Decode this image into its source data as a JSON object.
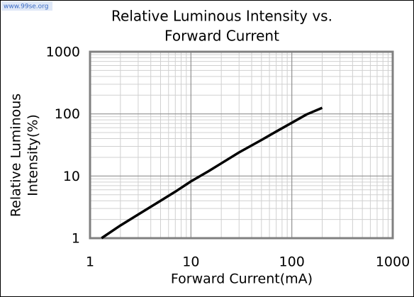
{
  "watermark": "www.99se.org",
  "chart_data": {
    "type": "line",
    "title": [
      "Relative Luminous Intensity vs.",
      "Forward Current"
    ],
    "x_label": "Forward Current(mA)",
    "y_label": [
      "Relative Luminous",
      "Intensity(%)"
    ],
    "x": [
      1.3,
      2,
      3,
      5,
      7,
      10,
      15,
      20,
      30,
      50,
      70,
      100,
      140,
      200
    ],
    "series": [
      {
        "color": "#000000",
        "values": [
          1,
          1.6,
          2.4,
          4,
          5.6,
          8.2,
          12,
          16,
          24,
          38,
          52,
          72,
          98,
          125
        ]
      }
    ],
    "xlim": [
      1,
      1000
    ],
    "ylim": [
      1,
      1000
    ],
    "xticks": [
      1,
      10,
      100,
      1000
    ],
    "yticks": [
      1,
      10,
      100,
      1000
    ],
    "xscale": "log",
    "yscale": "log",
    "grid": true
  }
}
